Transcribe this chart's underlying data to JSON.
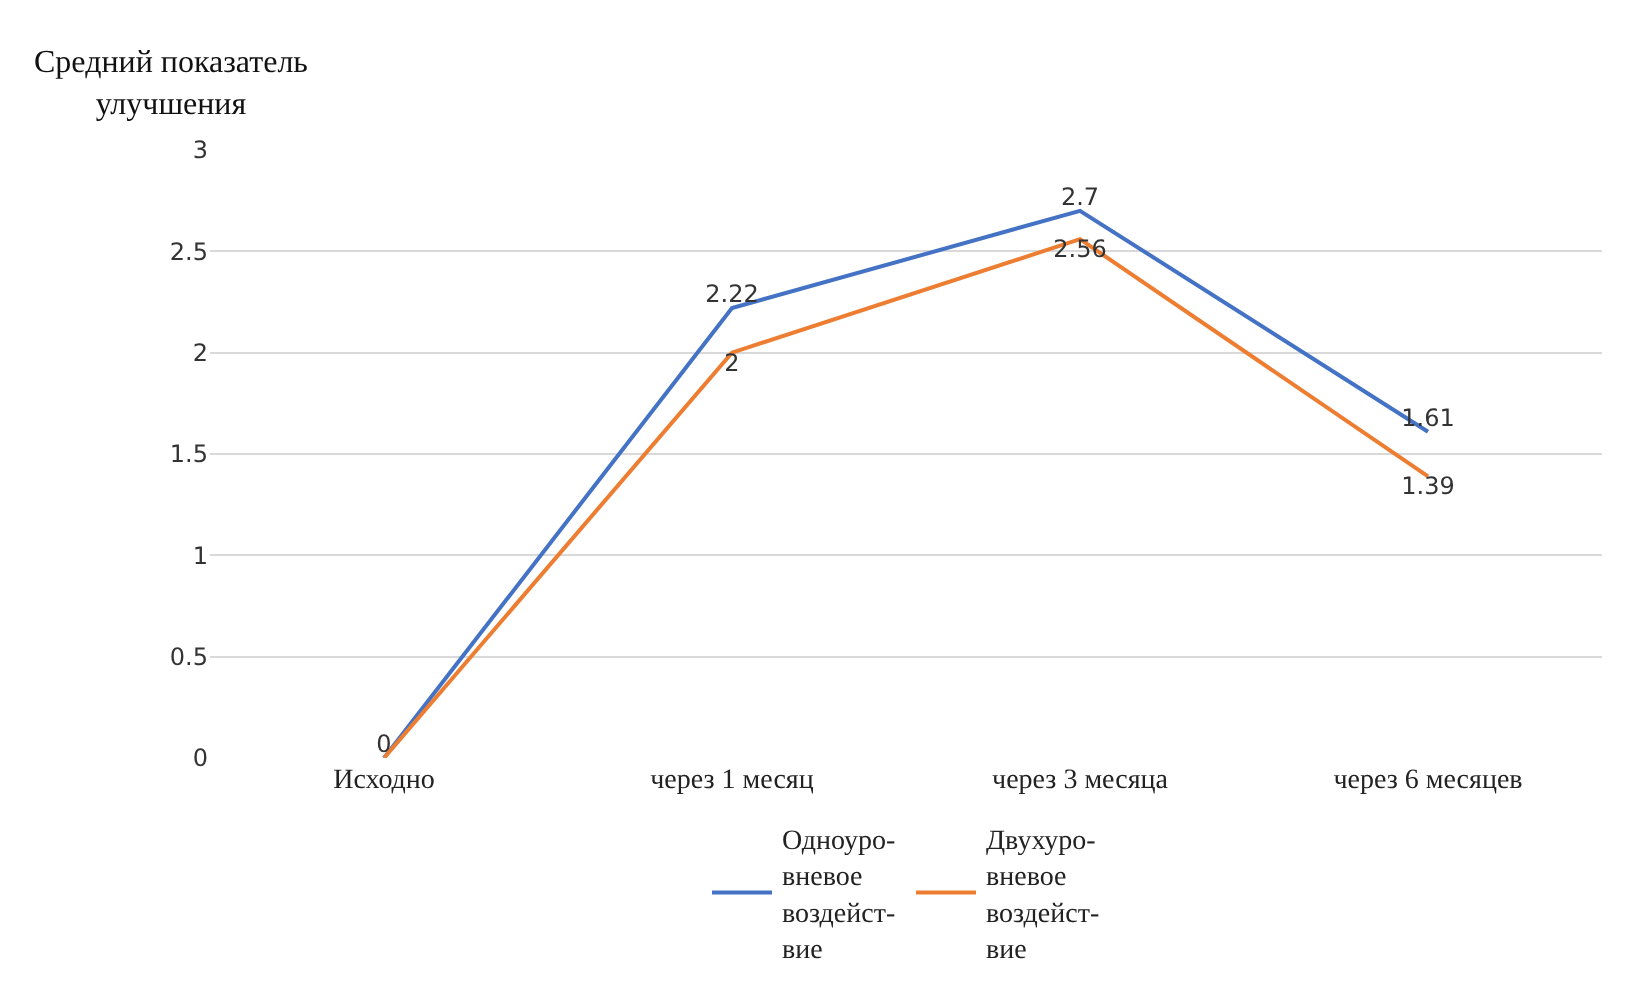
{
  "chart_data": {
    "type": "line",
    "ylabel": "Средний показатель\nулучшения",
    "categories": [
      "Исходно",
      "через 1 месяц",
      "через 3 месяца",
      "через 6 месяцев"
    ],
    "series": [
      {
        "name": "Одноуро-\nвневое\nвоздейст-\nвие",
        "color": "#4472c4",
        "values": [
          0,
          2.22,
          2.7,
          1.61
        ],
        "value_labels": [
          "0",
          "2.22",
          "2.7",
          "1.61"
        ]
      },
      {
        "name": "Двухуро-\nвневое\nвоздейст-\nвие",
        "color": "#ed7d31",
        "values": [
          0,
          2,
          2.56,
          1.39
        ],
        "value_labels": [
          null,
          "2",
          "2.56",
          "1.39"
        ]
      }
    ],
    "ylim": [
      0,
      3
    ],
    "yticks": [
      0,
      0.5,
      1,
      1.5,
      2,
      2.5,
      3
    ],
    "grid": "y",
    "legend": "bottom",
    "marker": "none",
    "line_style": "solid"
  }
}
